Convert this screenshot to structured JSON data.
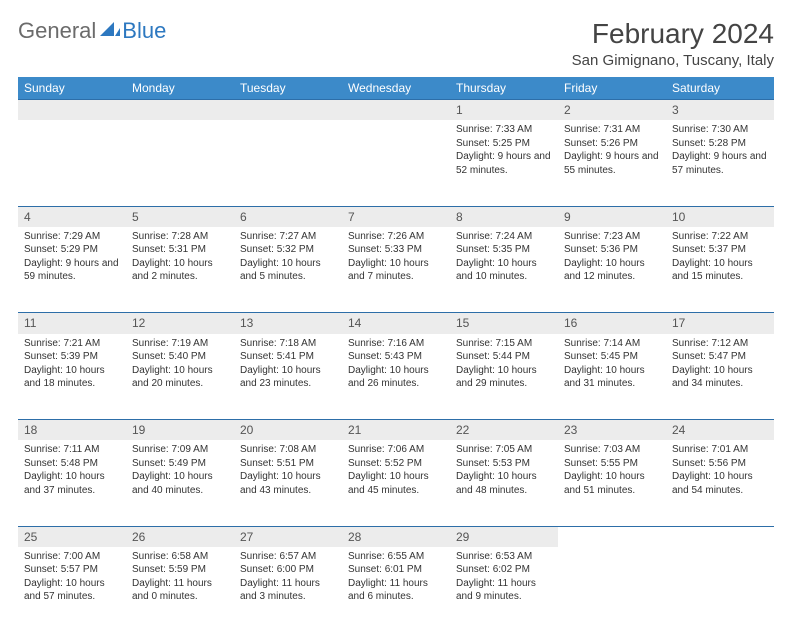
{
  "logo": {
    "general": "General",
    "blue": "Blue"
  },
  "title": "February 2024",
  "location": "San Gimignano, Tuscany, Italy",
  "colors": {
    "header_bg": "#3c8ac9",
    "header_text": "#ffffff",
    "daynum_bg": "#ececec",
    "rule": "#2d6ea8",
    "logo_gray": "#6b6b6b",
    "logo_blue": "#2d78c0"
  },
  "day_headers": [
    "Sunday",
    "Monday",
    "Tuesday",
    "Wednesday",
    "Thursday",
    "Friday",
    "Saturday"
  ],
  "weeks": [
    [
      null,
      null,
      null,
      null,
      {
        "n": "1",
        "sunrise": "7:33 AM",
        "sunset": "5:25 PM",
        "daylight": "9 hours and 52 minutes."
      },
      {
        "n": "2",
        "sunrise": "7:31 AM",
        "sunset": "5:26 PM",
        "daylight": "9 hours and 55 minutes."
      },
      {
        "n": "3",
        "sunrise": "7:30 AM",
        "sunset": "5:28 PM",
        "daylight": "9 hours and 57 minutes."
      }
    ],
    [
      {
        "n": "4",
        "sunrise": "7:29 AM",
        "sunset": "5:29 PM",
        "daylight": "9 hours and 59 minutes."
      },
      {
        "n": "5",
        "sunrise": "7:28 AM",
        "sunset": "5:31 PM",
        "daylight": "10 hours and 2 minutes."
      },
      {
        "n": "6",
        "sunrise": "7:27 AM",
        "sunset": "5:32 PM",
        "daylight": "10 hours and 5 minutes."
      },
      {
        "n": "7",
        "sunrise": "7:26 AM",
        "sunset": "5:33 PM",
        "daylight": "10 hours and 7 minutes."
      },
      {
        "n": "8",
        "sunrise": "7:24 AM",
        "sunset": "5:35 PM",
        "daylight": "10 hours and 10 minutes."
      },
      {
        "n": "9",
        "sunrise": "7:23 AM",
        "sunset": "5:36 PM",
        "daylight": "10 hours and 12 minutes."
      },
      {
        "n": "10",
        "sunrise": "7:22 AM",
        "sunset": "5:37 PM",
        "daylight": "10 hours and 15 minutes."
      }
    ],
    [
      {
        "n": "11",
        "sunrise": "7:21 AM",
        "sunset": "5:39 PM",
        "daylight": "10 hours and 18 minutes."
      },
      {
        "n": "12",
        "sunrise": "7:19 AM",
        "sunset": "5:40 PM",
        "daylight": "10 hours and 20 minutes."
      },
      {
        "n": "13",
        "sunrise": "7:18 AM",
        "sunset": "5:41 PM",
        "daylight": "10 hours and 23 minutes."
      },
      {
        "n": "14",
        "sunrise": "7:16 AM",
        "sunset": "5:43 PM",
        "daylight": "10 hours and 26 minutes."
      },
      {
        "n": "15",
        "sunrise": "7:15 AM",
        "sunset": "5:44 PM",
        "daylight": "10 hours and 29 minutes."
      },
      {
        "n": "16",
        "sunrise": "7:14 AM",
        "sunset": "5:45 PM",
        "daylight": "10 hours and 31 minutes."
      },
      {
        "n": "17",
        "sunrise": "7:12 AM",
        "sunset": "5:47 PM",
        "daylight": "10 hours and 34 minutes."
      }
    ],
    [
      {
        "n": "18",
        "sunrise": "7:11 AM",
        "sunset": "5:48 PM",
        "daylight": "10 hours and 37 minutes."
      },
      {
        "n": "19",
        "sunrise": "7:09 AM",
        "sunset": "5:49 PM",
        "daylight": "10 hours and 40 minutes."
      },
      {
        "n": "20",
        "sunrise": "7:08 AM",
        "sunset": "5:51 PM",
        "daylight": "10 hours and 43 minutes."
      },
      {
        "n": "21",
        "sunrise": "7:06 AM",
        "sunset": "5:52 PM",
        "daylight": "10 hours and 45 minutes."
      },
      {
        "n": "22",
        "sunrise": "7:05 AM",
        "sunset": "5:53 PM",
        "daylight": "10 hours and 48 minutes."
      },
      {
        "n": "23",
        "sunrise": "7:03 AM",
        "sunset": "5:55 PM",
        "daylight": "10 hours and 51 minutes."
      },
      {
        "n": "24",
        "sunrise": "7:01 AM",
        "sunset": "5:56 PM",
        "daylight": "10 hours and 54 minutes."
      }
    ],
    [
      {
        "n": "25",
        "sunrise": "7:00 AM",
        "sunset": "5:57 PM",
        "daylight": "10 hours and 57 minutes."
      },
      {
        "n": "26",
        "sunrise": "6:58 AM",
        "sunset": "5:59 PM",
        "daylight": "11 hours and 0 minutes."
      },
      {
        "n": "27",
        "sunrise": "6:57 AM",
        "sunset": "6:00 PM",
        "daylight": "11 hours and 3 minutes."
      },
      {
        "n": "28",
        "sunrise": "6:55 AM",
        "sunset": "6:01 PM",
        "daylight": "11 hours and 6 minutes."
      },
      {
        "n": "29",
        "sunrise": "6:53 AM",
        "sunset": "6:02 PM",
        "daylight": "11 hours and 9 minutes."
      },
      null,
      null
    ]
  ],
  "labels": {
    "sunrise": "Sunrise:",
    "sunset": "Sunset:",
    "daylight": "Daylight:"
  }
}
